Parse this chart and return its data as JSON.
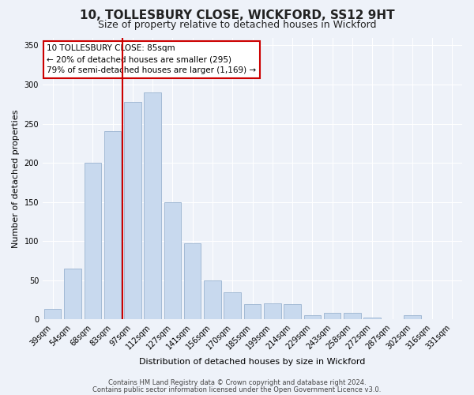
{
  "title": "10, TOLLESBURY CLOSE, WICKFORD, SS12 9HT",
  "subtitle": "Size of property relative to detached houses in Wickford",
  "xlabel": "Distribution of detached houses by size in Wickford",
  "ylabel": "Number of detached properties",
  "bar_labels": [
    "39sqm",
    "54sqm",
    "68sqm",
    "83sqm",
    "97sqm",
    "112sqm",
    "127sqm",
    "141sqm",
    "156sqm",
    "170sqm",
    "185sqm",
    "199sqm",
    "214sqm",
    "229sqm",
    "243sqm",
    "258sqm",
    "272sqm",
    "287sqm",
    "302sqm",
    "316sqm",
    "331sqm"
  ],
  "bar_values": [
    13,
    65,
    200,
    240,
    278,
    290,
    150,
    97,
    50,
    35,
    19,
    20,
    19,
    5,
    8,
    8,
    2,
    0,
    5,
    0,
    0
  ],
  "bar_color": "#c8d9ee",
  "bar_edge_color": "#9ab3d0",
  "redline_index": 3.5,
  "ylim": [
    0,
    360
  ],
  "yticks": [
    0,
    50,
    100,
    150,
    200,
    250,
    300,
    350
  ],
  "annotation_title": "10 TOLLESBURY CLOSE: 85sqm",
  "annotation_line1": "← 20% of detached houses are smaller (295)",
  "annotation_line2": "79% of semi-detached houses are larger (1,169) →",
  "annotation_box_color": "#ffffff",
  "annotation_box_edge": "#cc0000",
  "redline_color": "#cc0000",
  "footer1": "Contains HM Land Registry data © Crown copyright and database right 2024.",
  "footer2": "Contains public sector information licensed under the Open Government Licence v3.0.",
  "background_color": "#eef2f9",
  "plot_background": "#eef2f9",
  "grid_color": "#ffffff",
  "title_fontsize": 11,
  "subtitle_fontsize": 9,
  "tick_fontsize": 7,
  "ylabel_fontsize": 8,
  "xlabel_fontsize": 8,
  "annotation_fontsize": 7.5,
  "footer_fontsize": 6
}
